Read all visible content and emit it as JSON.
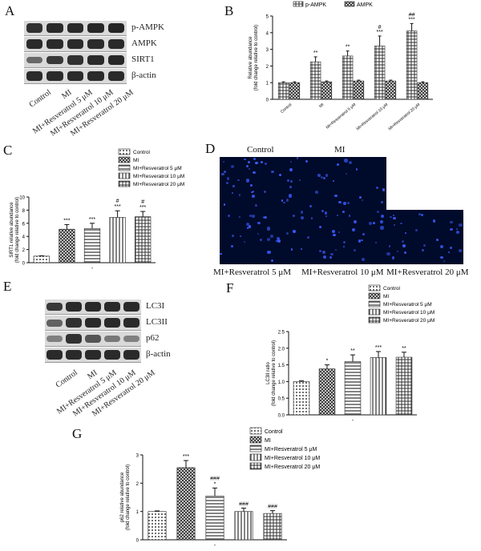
{
  "panels": {
    "A": {
      "label": "A",
      "rows": [
        {
          "name": "p-AMPK",
          "intensity": [
            0.85,
            0.9,
            0.9,
            0.92,
            0.95
          ]
        },
        {
          "name": "AMPK",
          "intensity": [
            0.9,
            0.9,
            0.9,
            0.9,
            0.9
          ]
        },
        {
          "name": "SIRT1",
          "intensity": [
            0.45,
            0.8,
            0.85,
            0.9,
            0.92
          ]
        },
        {
          "name": "β-actin",
          "intensity": [
            0.9,
            0.9,
            0.9,
            0.9,
            0.9
          ]
        }
      ],
      "samples": [
        "Control",
        "MI",
        "MI+Resveratrol 5 μM",
        "MI+Resveratrol 10 μM",
        "MI+Resveratrol 20 μM"
      ]
    },
    "B": {
      "label": "B",
      "chart_data": {
        "type": "bar",
        "categories": [
          "Control",
          "MI",
          "MI+Resveratrol 5 μM",
          "MI+Resveratrol 10 μM",
          "MI+Resveratrol 20 μM"
        ],
        "series": [
          {
            "name": "p-AMPK",
            "values": [
              1.0,
              2.25,
              2.6,
              3.2,
              4.1
            ],
            "errors": [
              0.05,
              0.3,
              0.3,
              0.6,
              0.45
            ],
            "sig": [
              "",
              "**",
              "**",
              "#\n***",
              "##\n***"
            ],
            "pattern": "grid"
          },
          {
            "name": "AMPK",
            "values": [
              1.0,
              1.05,
              1.1,
              1.1,
              1.0
            ],
            "errors": [
              0.05,
              0.05,
              0.05,
              0.05,
              0.05
            ],
            "sig": [
              "",
              "",
              "",
              "",
              ""
            ],
            "pattern": "cross"
          }
        ],
        "ylabel": "Relative abundance",
        "ylabel2": "(fold change relative to control)",
        "ylim": [
          0,
          5
        ],
        "yticks": [
          0,
          1,
          2,
          3,
          4,
          5
        ],
        "legend": "top"
      }
    },
    "C": {
      "label": "C",
      "chart_data": {
        "type": "bar",
        "categories": [
          "Control",
          "MI",
          "MI+Resveratrol 5 μM",
          "MI+Resveratrol 10 μM",
          "MI+Resveratrol 20 μM"
        ],
        "values": [
          1.0,
          5.1,
          5.2,
          6.9,
          7.0
        ],
        "errors": [
          0.05,
          0.7,
          0.8,
          1.0,
          0.8
        ],
        "sig": [
          "",
          "***",
          "***",
          "#\n***",
          "#\n***"
        ],
        "patterns": [
          "dots",
          "cross",
          "hlines",
          "vlines",
          "grid"
        ],
        "legend": [
          "Control",
          "MI",
          "MI+Resveratrol 5 μM",
          "MI+Resveratrol 10 μM",
          "MI+Resveratrol 20 μM"
        ],
        "ylabel": "SIRT1 relative abundance",
        "ylabel2": "(fold change relative to control)",
        "ylim": [
          0,
          10
        ],
        "yticks": [
          0,
          2,
          4,
          6,
          8,
          10
        ],
        "xtick": "-"
      }
    },
    "D": {
      "label": "D",
      "titles": [
        "Control",
        "MI",
        "MI+Resveratrol 5 μM",
        "MI+Resveratrol 10 μM",
        "MI+Resveratrol 20 μM"
      ]
    },
    "E": {
      "label": "E",
      "rows": [
        {
          "name": "LC3I",
          "intensity": [
            0.8,
            0.9,
            0.9,
            0.9,
            0.9
          ]
        },
        {
          "name": "LC3II",
          "intensity": [
            0.5,
            0.85,
            0.9,
            0.9,
            0.9
          ]
        },
        {
          "name": "p62",
          "intensity": [
            0.3,
            0.85,
            0.6,
            0.35,
            0.3
          ]
        },
        {
          "name": "β-actin",
          "intensity": [
            0.9,
            0.9,
            0.9,
            0.9,
            0.9
          ]
        }
      ],
      "samples": [
        "Control",
        "MI",
        "MI+Resveratrol 5 μM",
        "MI+Resveratrol 10 μM",
        "MI+Resveratrol 20 μM"
      ]
    },
    "F": {
      "label": "F",
      "chart_data": {
        "type": "bar",
        "categories": [
          "Control",
          "MI",
          "MI+Resveratrol 5 μM",
          "MI+Resveratrol 10 μM",
          "MI+Resveratrol 20 μM"
        ],
        "values": [
          1.0,
          1.38,
          1.6,
          1.72,
          1.73
        ],
        "errors": [
          0.02,
          0.12,
          0.2,
          0.18,
          0.15
        ],
        "sig": [
          "",
          "*",
          "**",
          "***",
          "**"
        ],
        "patterns": [
          "dots",
          "cross",
          "hlines",
          "vlines",
          "grid"
        ],
        "legend": [
          "Control",
          "MI",
          "MI+Resveratrol 5 μM",
          "MI+Resveratrol 10 μM",
          "MI+Resveratrol 20 μM"
        ],
        "ylabel": "LC3II ratio",
        "ylabel2": "(fold change relative to control)",
        "ylim": [
          0,
          2.5
        ],
        "yticks": [
          0,
          0.5,
          1,
          1.5,
          2,
          2.5
        ],
        "yticklabels": [
          "0.0",
          "0.5",
          "1.0",
          "1.5",
          "2.0",
          "2.5"
        ],
        "xtick": "-"
      }
    },
    "G": {
      "label": "G",
      "chart_data": {
        "type": "bar",
        "categories": [
          "Control",
          "MI",
          "MI+Resveratrol 5 μM",
          "MI+Resveratrol 10 μM",
          "MI+Resveratrol 20 μM"
        ],
        "values": [
          1.0,
          2.55,
          1.55,
          1.0,
          0.93
        ],
        "errors": [
          0.02,
          0.25,
          0.28,
          0.12,
          0.1
        ],
        "sig": [
          "",
          "***",
          "###\n*",
          "###",
          "###"
        ],
        "patterns": [
          "dots",
          "cross",
          "hlines",
          "vlines",
          "grid"
        ],
        "legend": [
          "Control",
          "MI",
          "MI+Resveratrol 5 μM",
          "MI+Resveratrol 10 μM",
          "MI+Resveratrol 20 μM"
        ],
        "ylabel": "p62 relative abundance",
        "ylabel2": "(fold change relative to control)",
        "ylim": [
          0,
          3
        ],
        "yticks": [
          0,
          1,
          2,
          3
        ],
        "xtick": "-"
      }
    }
  }
}
